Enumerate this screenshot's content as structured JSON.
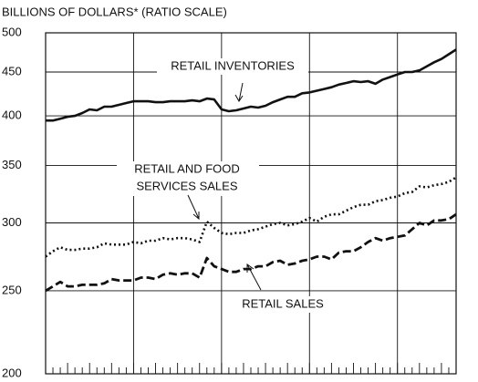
{
  "chart_data": {
    "type": "line",
    "ylabel": "BILLIONS OF DOLLARS* (RATIO SCALE)",
    "log_scale": true,
    "grid": true,
    "ylim": [
      200,
      500
    ],
    "yticks": [
      200,
      250,
      300,
      350,
      400,
      450,
      500
    ],
    "categories": [
      null,
      null,
      null,
      null,
      null,
      null,
      null,
      null,
      null,
      null,
      null,
      null,
      null,
      null,
      null,
      null,
      null,
      null,
      null,
      null,
      null,
      null,
      null,
      null,
      null,
      null,
      null,
      null,
      null,
      null,
      null,
      null,
      null,
      null,
      null,
      null,
      null,
      null,
      null,
      null,
      null,
      null,
      null,
      null,
      null,
      null,
      null,
      null,
      null,
      null,
      null,
      null,
      null,
      null,
      null,
      null,
      null
    ],
    "series": [
      {
        "name": "RETAIL INVENTORIES",
        "color": "#111111",
        "style": "solid",
        "values": [
          395,
          395,
          397,
          399,
          400,
          403,
          407,
          406,
          410,
          410,
          412,
          414,
          416,
          416,
          416,
          415,
          415,
          416,
          416,
          416,
          417,
          416,
          419,
          418,
          407,
          405,
          406,
          408,
          410,
          409,
          411,
          415,
          418,
          421,
          421,
          425,
          426,
          428,
          430,
          432,
          435,
          437,
          439,
          438,
          439,
          436,
          441,
          444,
          447,
          450,
          450,
          452,
          457,
          462,
          466,
          472,
          478
        ]
      },
      {
        "name": [
          "RETAIL AND FOOD",
          "SERVICES SALES"
        ],
        "color": "#111111",
        "style": "dotted",
        "values": [
          274,
          278,
          281,
          279,
          279,
          280,
          280,
          281,
          284,
          283,
          283,
          283,
          285,
          284,
          286,
          286,
          288,
          287,
          288,
          288,
          287,
          285,
          301,
          296,
          292,
          291,
          292,
          292,
          294,
          295,
          297,
          299,
          300,
          298,
          299,
          301,
          304,
          301,
          305,
          307,
          307,
          310,
          313,
          315,
          315,
          318,
          319,
          321,
          322,
          325,
          326,
          331,
          330,
          332,
          333,
          335,
          339
        ]
      },
      {
        "name": "RETAIL SALES",
        "color": "#111111",
        "style": "dashed",
        "values": [
          250,
          253,
          256,
          253,
          253,
          254,
          254,
          254,
          255,
          258,
          257,
          257,
          257,
          259,
          259,
          258,
          261,
          262,
          261,
          262,
          262,
          259,
          273,
          267,
          265,
          263,
          263,
          265,
          265,
          267,
          267,
          270,
          271,
          268,
          269,
          271,
          272,
          274,
          274,
          272,
          277,
          278,
          278,
          281,
          285,
          288,
          286,
          288,
          289,
          290,
          295,
          300,
          298,
          302,
          302,
          303,
          307
        ]
      }
    ]
  }
}
